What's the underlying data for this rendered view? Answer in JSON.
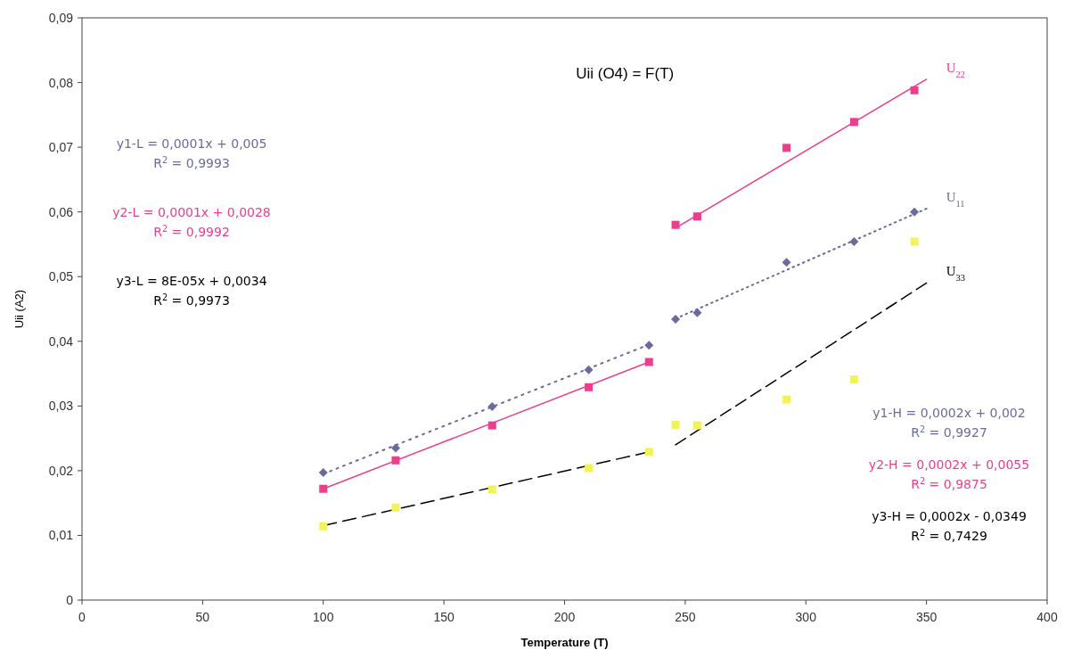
{
  "chart_data": {
    "type": "scatter",
    "title": "Uii (O4) = F(T)",
    "xlabel": "Temperature (T)",
    "ylabel": "Uii (A2)",
    "xlim": [
      0,
      400
    ],
    "xticks": [
      0,
      50,
      100,
      150,
      200,
      250,
      300,
      350,
      400
    ],
    "ylim": [
      0,
      0.09
    ],
    "yticks": [
      0,
      {
        "value": 0.01,
        "label": "0,01"
      },
      {
        "value": 0.02,
        "label": "0,02"
      },
      {
        "value": 0.03,
        "label": "0,03"
      },
      {
        "value": 0.04,
        "label": "0,04"
      },
      {
        "value": 0.05,
        "label": "0,05"
      },
      {
        "value": 0.06,
        "label": "0,06"
      },
      {
        "value": 0.07,
        "label": "0,07"
      },
      {
        "value": 0.08,
        "label": "0,08"
      },
      {
        "value": 0.09,
        "label": "0,09"
      }
    ],
    "grid": false,
    "x": [
      100,
      130,
      170,
      210,
      235,
      246,
      255,
      292,
      320,
      345
    ],
    "series": [
      {
        "marker": "diamond",
        "color": "#6b6b9b",
        "values": [
          0.0197,
          0.0235,
          0.0299,
          0.0356,
          0.0394,
          0.0434,
          0.0444,
          0.0522,
          0.0554,
          0.06
        ]
      },
      {
        "marker": "square",
        "color": "#e8408c",
        "values": [
          0.0172,
          0.0216,
          0.027,
          0.0329,
          0.0368,
          0.058,
          0.0593,
          0.0699,
          0.0739,
          0.0788
        ]
      },
      {
        "marker": "square",
        "color": "#f2f25a",
        "values": [
          0.0114,
          0.0143,
          0.0171,
          0.0204,
          0.0229,
          0.0271,
          0.027,
          0.031,
          0.0341,
          0.0554
        ]
      },
      {
        "type": "line",
        "marker": "none",
        "line_style": "dotted",
        "color": "#6b6b9b",
        "x": [
          100,
          235
        ],
        "values": [
          0.0195,
          0.0395
        ]
      },
      {
        "type": "line",
        "marker": "none",
        "line_style": "solid",
        "color": "#e8408c",
        "x": [
          100,
          235
        ],
        "values": [
          0.0172,
          0.0368
        ]
      },
      {
        "type": "line",
        "marker": "none",
        "line_style": "dashed",
        "color": "#000000",
        "x": [
          100,
          235
        ],
        "values": [
          0.0115,
          0.0229
        ]
      },
      {
        "type": "line",
        "marker": "none",
        "line_style": "dotted",
        "color": "#6b6b9b",
        "name": "U$_{11}$",
        "x": [
          246,
          350
        ],
        "values": [
          0.0435,
          0.0605
        ]
      },
      {
        "type": "line",
        "marker": "none",
        "line_style": "solid",
        "color": "#e8408c",
        "name": "U$_{22}$",
        "x": [
          246,
          350
        ],
        "values": [
          0.0575,
          0.0805
        ]
      },
      {
        "type": "line",
        "marker": "none",
        "line_style": "dashed",
        "color": "#000000",
        "name": "U$_{33}$",
        "x": [
          246,
          350
        ],
        "values": [
          0.024,
          0.049
        ]
      }
    ],
    "annotations": [
      "y1-L = 0,0001x + 0,005",
      "R$^{2}$ = 0,9993",
      "y2-L = 0,0001x + 0,0028",
      "R$^{2}$ = 0,9992",
      "y3-L = 8E-05x + 0,0034",
      "R$^{2}$ = 0,9973",
      "y1-H = 0,0002x + 0,002",
      "R$^{2}$ = 0,9927",
      "y2-H = 0,0002x + 0,0055",
      "R$^{2}$ = 0,9875",
      "y3-H = 0,0002x - 0,0349",
      "R$^{2}$ = 0,7429"
    ]
  }
}
